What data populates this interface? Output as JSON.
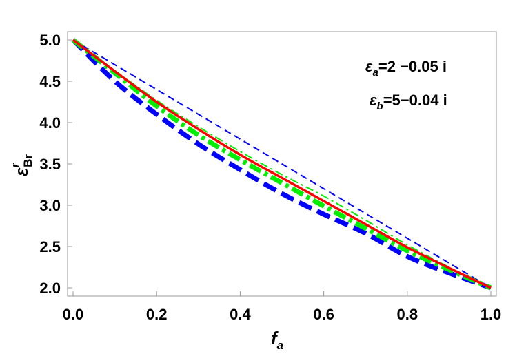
{
  "chart_data": {
    "type": "line",
    "xlabel": {
      "main": "f",
      "sub": "a"
    },
    "ylabel": {
      "main": "ε",
      "sup": "r",
      "sub": "Br"
    },
    "xlim": [
      0,
      1
    ],
    "ylim": [
      1.9,
      5.1
    ],
    "xticks": [
      "0.0",
      "0.2",
      "0.4",
      "0.6",
      "0.8",
      "1.0"
    ],
    "yticks": [
      "2.0",
      "2.5",
      "3.0",
      "3.5",
      "4.0",
      "4.5",
      "5.0"
    ],
    "grid": false,
    "annotations": [
      {
        "sym": "ε",
        "sub": "a",
        "text": "=2 −0.05 i"
      },
      {
        "sym": "ε",
        "sub": "b",
        "text": "=5−0.04 i"
      }
    ],
    "series": [
      {
        "color": "#0000ff",
        "style": "thin-dashed",
        "x": [
          0,
          0.1,
          0.2,
          0.3,
          0.4,
          0.5,
          0.6,
          0.7,
          0.8,
          0.9,
          1.0
        ],
        "y": [
          5.0,
          4.7,
          4.4,
          4.1,
          3.8,
          3.5,
          3.2,
          2.9,
          2.6,
          2.3,
          2.0
        ]
      },
      {
        "color": "#0000ff",
        "style": "thick-dashed",
        "x": [
          0,
          0.1,
          0.2,
          0.3,
          0.4,
          0.5,
          0.6,
          0.7,
          0.8,
          0.9,
          1.0
        ],
        "y": [
          5.0,
          4.5,
          4.1,
          3.74,
          3.43,
          3.14,
          2.89,
          2.66,
          2.38,
          2.18,
          2.0
        ]
      },
      {
        "color": "#00ee00",
        "style": "thin-dashdot",
        "x": [
          0,
          0.1,
          0.2,
          0.3,
          0.4,
          0.5,
          0.6,
          0.7,
          0.8,
          0.9,
          1.0
        ],
        "y": [
          5.0,
          4.63,
          4.27,
          3.95,
          3.65,
          3.37,
          3.11,
          2.82,
          2.52,
          2.25,
          2.0
        ]
      },
      {
        "color": "#00ee00",
        "style": "thick-dashdot",
        "x": [
          0,
          0.1,
          0.2,
          0.3,
          0.4,
          0.5,
          0.6,
          0.7,
          0.8,
          0.9,
          1.0
        ],
        "y": [
          5.0,
          4.6,
          4.2,
          3.85,
          3.55,
          3.27,
          2.99,
          2.72,
          2.45,
          2.22,
          2.0
        ]
      },
      {
        "color": "#ff0000",
        "style": "solid",
        "x": [
          0,
          0.1,
          0.2,
          0.3,
          0.4,
          0.5,
          0.6,
          0.7,
          0.8,
          0.9,
          1.0
        ],
        "y": [
          5.0,
          4.62,
          4.25,
          3.92,
          3.61,
          3.33,
          3.05,
          2.77,
          2.49,
          2.24,
          2.0
        ]
      }
    ]
  }
}
